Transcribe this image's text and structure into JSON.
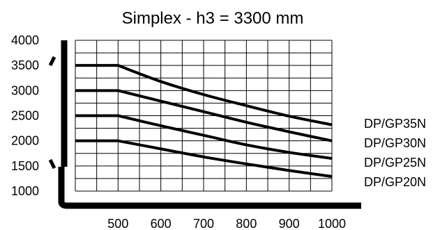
{
  "chart_data": {
    "type": "line",
    "title": "Simplex - h3 = 3300 mm",
    "xlabel": "",
    "ylabel": "",
    "xlim": [
      400,
      1000
    ],
    "ylim": [
      1000,
      4000
    ],
    "x_ticks": [
      500,
      600,
      700,
      800,
      900,
      1000
    ],
    "y_ticks": [
      1000,
      1500,
      2000,
      2500,
      3000,
      3500,
      4000
    ],
    "x_tick_labels": [
      "500",
      "600",
      "700",
      "800",
      "900",
      "1000"
    ],
    "y_tick_labels": [
      "1000",
      "1500",
      "2000",
      "2500",
      "3000",
      "3500",
      "4000"
    ],
    "grid": true,
    "legend_position": "right",
    "series": [
      {
        "name": "DP/GP35N",
        "x": [
          400,
          500,
          600,
          700,
          800,
          900,
          1000
        ],
        "y": [
          3500,
          3500,
          3180,
          2920,
          2700,
          2490,
          2320
        ]
      },
      {
        "name": "DP/GP30N",
        "x": [
          400,
          500,
          600,
          700,
          800,
          900,
          1000
        ],
        "y": [
          3000,
          3000,
          2790,
          2580,
          2370,
          2180,
          2000
        ]
      },
      {
        "name": "DP/GP25N",
        "x": [
          400,
          500,
          600,
          700,
          800,
          900,
          1000
        ],
        "y": [
          2500,
          2500,
          2300,
          2110,
          1920,
          1770,
          1650
        ]
      },
      {
        "name": "DP/GP20N",
        "x": [
          400,
          500,
          600,
          700,
          800,
          900,
          1000
        ],
        "y": [
          2000,
          2000,
          1840,
          1680,
          1540,
          1410,
          1290
        ]
      }
    ]
  }
}
